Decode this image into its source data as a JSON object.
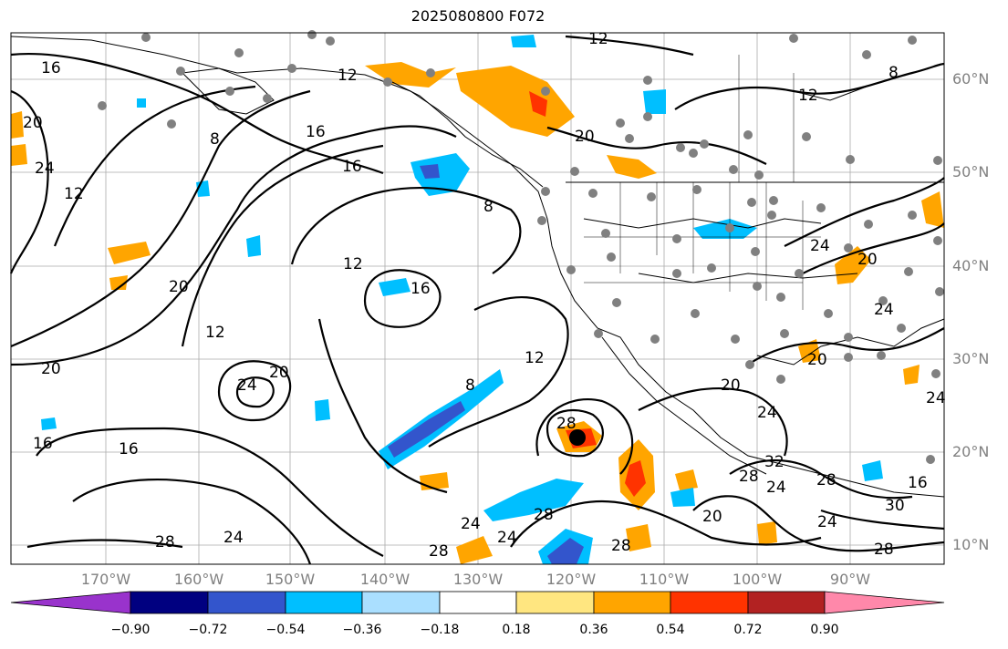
{
  "title": "2025080800 F072",
  "lat_labels": [
    "60°N",
    "50°N",
    "40°N",
    "30°N",
    "20°N",
    "10°N"
  ],
  "lon_labels": [
    "170°W",
    "160°W",
    "150°W",
    "140°W",
    "130°W",
    "120°W",
    "110°W",
    "100°W",
    "90°W"
  ],
  "colorbar": {
    "colors": [
      "#9933cc",
      "#000080",
      "#3355cc",
      "#00bfff",
      "#aadfff",
      "#ffffff",
      "#ffe680",
      "#ffa500",
      "#ff3300",
      "#b22222",
      "#ff88aa"
    ],
    "tick_labels": [
      "−0.90",
      "−0.72",
      "−0.54",
      "−0.36",
      "−0.18",
      "0.18",
      "0.36",
      "0.54",
      "0.72",
      "0.90"
    ]
  },
  "contour_labels": [
    "12",
    "16",
    "12",
    "8",
    "16",
    "16",
    "8",
    "20",
    "20",
    "24",
    "12",
    "20",
    "12",
    "16",
    "8",
    "12",
    "8",
    "12",
    "20",
    "24",
    "16",
    "16",
    "20",
    "12",
    "24",
    "28",
    "28",
    "24",
    "28",
    "24",
    "28",
    "28",
    "20",
    "20",
    "24",
    "28",
    "32",
    "28",
    "24",
    "16",
    "24",
    "28",
    "20",
    "24",
    "24",
    "20",
    "24",
    "30"
  ]
}
